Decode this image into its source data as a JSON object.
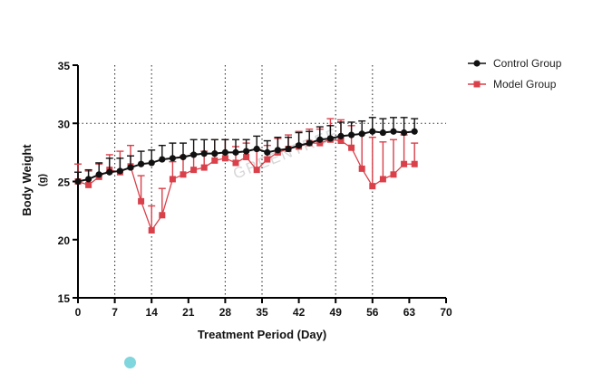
{
  "chart_data": {
    "type": "line",
    "xlabel": "Treatment Period (Day)",
    "ylabel": "Body Weight",
    "ylabel_unit": "(g)",
    "xlim": [
      0,
      70
    ],
    "ylim": [
      15,
      35
    ],
    "x_ticks": [
      "0",
      "7",
      "14",
      "21",
      "28",
      "35",
      "42",
      "49",
      "56",
      "63",
      "70"
    ],
    "y_ticks": [
      "15",
      "20",
      "25",
      "30",
      "35"
    ],
    "reference_vlines": [
      7,
      14,
      28,
      35,
      49,
      56
    ],
    "reference_hline": 30,
    "legend_position": "top-right",
    "watermark": "GREENTREE",
    "series": [
      {
        "name": "Control Group",
        "color": "#111111",
        "marker": "circle",
        "error_direction": "up",
        "x": [
          0,
          2,
          4,
          6,
          8,
          10,
          12,
          14,
          16,
          18,
          20,
          22,
          24,
          26,
          28,
          30,
          32,
          34,
          36,
          38,
          40,
          42,
          44,
          46,
          48,
          50,
          52,
          54,
          56,
          58,
          60,
          62,
          64
        ],
        "y": [
          25.0,
          25.2,
          25.6,
          25.8,
          25.9,
          26.2,
          26.5,
          26.6,
          26.9,
          27.0,
          27.1,
          27.3,
          27.4,
          27.4,
          27.5,
          27.5,
          27.6,
          27.8,
          27.5,
          27.7,
          27.8,
          28.1,
          28.3,
          28.6,
          28.7,
          28.9,
          29.0,
          29.1,
          29.3,
          29.2,
          29.3,
          29.2,
          29.3
        ],
        "err": [
          0.8,
          0.8,
          1.0,
          1.2,
          1.1,
          1.0,
          1.1,
          1.1,
          1.2,
          1.3,
          1.2,
          1.3,
          1.2,
          1.2,
          1.1,
          1.1,
          1.0,
          1.1,
          1.0,
          1.1,
          1.0,
          1.1,
          1.0,
          1.1,
          1.1,
          1.2,
          1.1,
          1.1,
          1.2,
          1.2,
          1.2,
          1.3,
          1.1
        ]
      },
      {
        "name": "Model Group",
        "color": "#d9404a",
        "marker": "square",
        "error_direction": "up",
        "x": [
          0,
          2,
          4,
          6,
          8,
          10,
          12,
          14,
          16,
          18,
          20,
          22,
          24,
          26,
          28,
          30,
          32,
          34,
          36,
          38,
          40,
          42,
          44,
          46,
          48,
          50,
          52,
          54,
          56,
          58,
          60,
          62,
          64
        ],
        "y": [
          25.0,
          24.7,
          25.4,
          26.0,
          25.8,
          26.3,
          23.3,
          20.8,
          22.1,
          25.2,
          25.6,
          26.0,
          26.2,
          26.8,
          27.0,
          26.6,
          27.1,
          26.0,
          26.9,
          27.5,
          27.8,
          28.0,
          28.3,
          28.3,
          28.6,
          28.5,
          27.9,
          26.1,
          24.6,
          25.2,
          25.6,
          26.5,
          26.5
        ],
        "err": [
          1.5,
          1.2,
          1.1,
          1.3,
          1.8,
          1.8,
          2.2,
          2.1,
          2.3,
          1.5,
          1.6,
          1.4,
          1.4,
          1.8,
          1.6,
          1.4,
          1.2,
          1.8,
          1.2,
          1.2,
          1.2,
          1.3,
          1.2,
          1.2,
          1.8,
          1.8,
          1.9,
          3.0,
          4.2,
          3.2,
          3.0,
          2.5,
          1.8
        ]
      }
    ]
  }
}
